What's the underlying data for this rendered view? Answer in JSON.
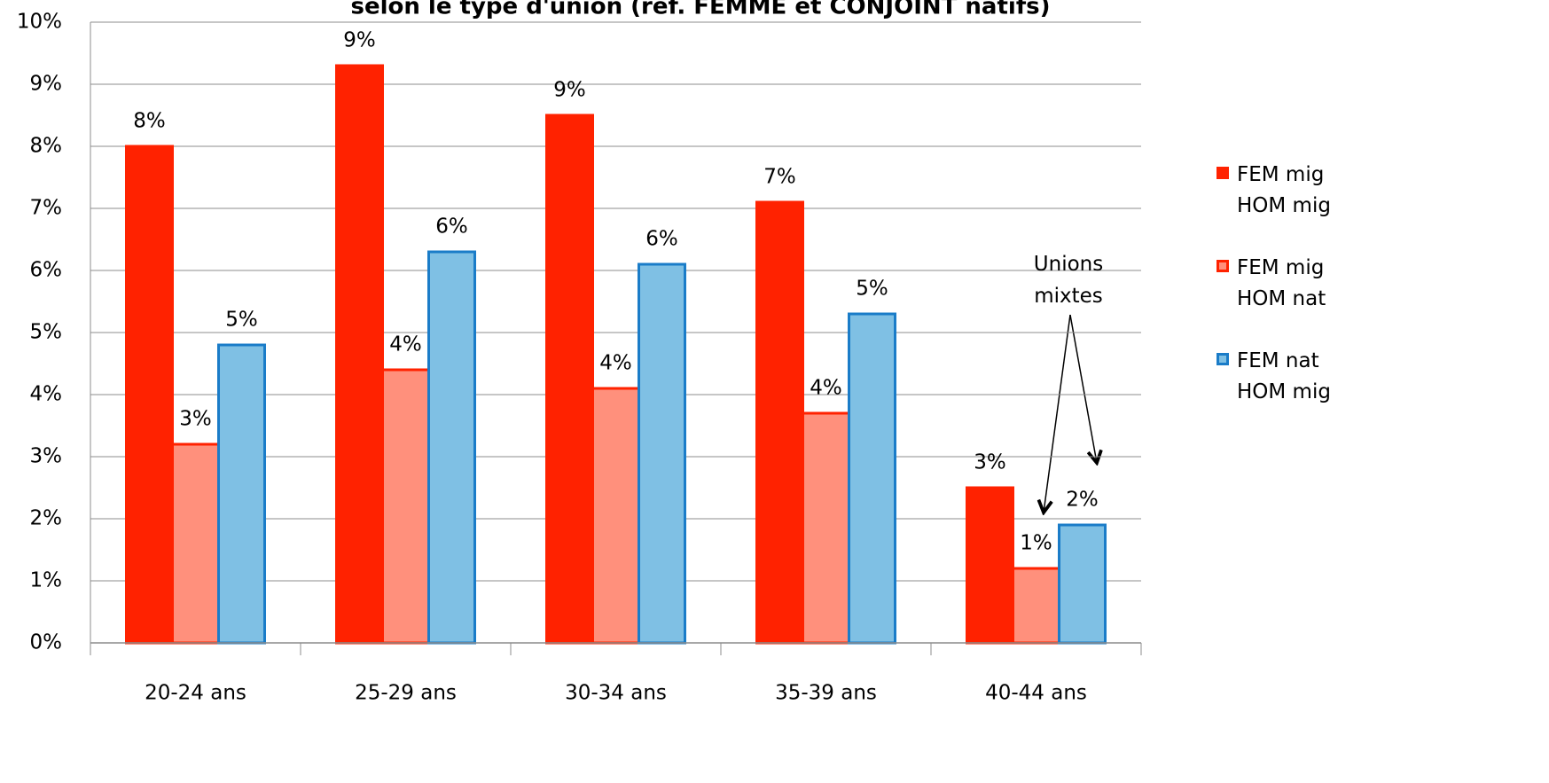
{
  "chart_data": {
    "type": "bar",
    "title": "selon le type d'union (réf. FEMME et CONJOINT natifs)",
    "categories": [
      "20-24 ans",
      "25-29 ans",
      "30-34 ans",
      "35-39 ans",
      "40-44 ans"
    ],
    "series": [
      {
        "name": "FEM mig HOM mig",
        "color": "#ff2200",
        "border": "#ff2200",
        "values": [
          8.0,
          9.3,
          8.5,
          7.1,
          2.5
        ],
        "value_labels": [
          "8%",
          "9%",
          "9%",
          "7%",
          "3%"
        ]
      },
      {
        "name": "FEM mig HOM nat",
        "color": "#ff907c",
        "border": "#ff2200",
        "values": [
          3.2,
          4.4,
          4.1,
          3.7,
          1.2
        ],
        "value_labels": [
          "3%",
          "4%",
          "4%",
          "4%",
          "1%"
        ]
      },
      {
        "name": "FEM nat HOM mig",
        "color": "#7fc0e4",
        "border": "#1a7cc8",
        "values": [
          4.8,
          6.3,
          6.1,
          5.3,
          1.9
        ],
        "value_labels": [
          "5%",
          "6%",
          "6%",
          "5%",
          "2%"
        ]
      }
    ],
    "ylim": [
      0,
      10
    ],
    "yticks": [
      {
        "value": 0,
        "label": "0%"
      },
      {
        "value": 1,
        "label": "1%"
      },
      {
        "value": 2,
        "label": "2%"
      },
      {
        "value": 3,
        "label": "3%"
      },
      {
        "value": 4,
        "label": "4%"
      },
      {
        "value": 5,
        "label": "5%"
      },
      {
        "value": 6,
        "label": "6%"
      },
      {
        "value": 7,
        "label": "7%"
      },
      {
        "value": 8,
        "label": "8%"
      },
      {
        "value": 9,
        "label": "9%"
      },
      {
        "value": 10,
        "label": "10%"
      }
    ],
    "grid": true,
    "legend": "right",
    "annotation": "Unions mixtes"
  }
}
